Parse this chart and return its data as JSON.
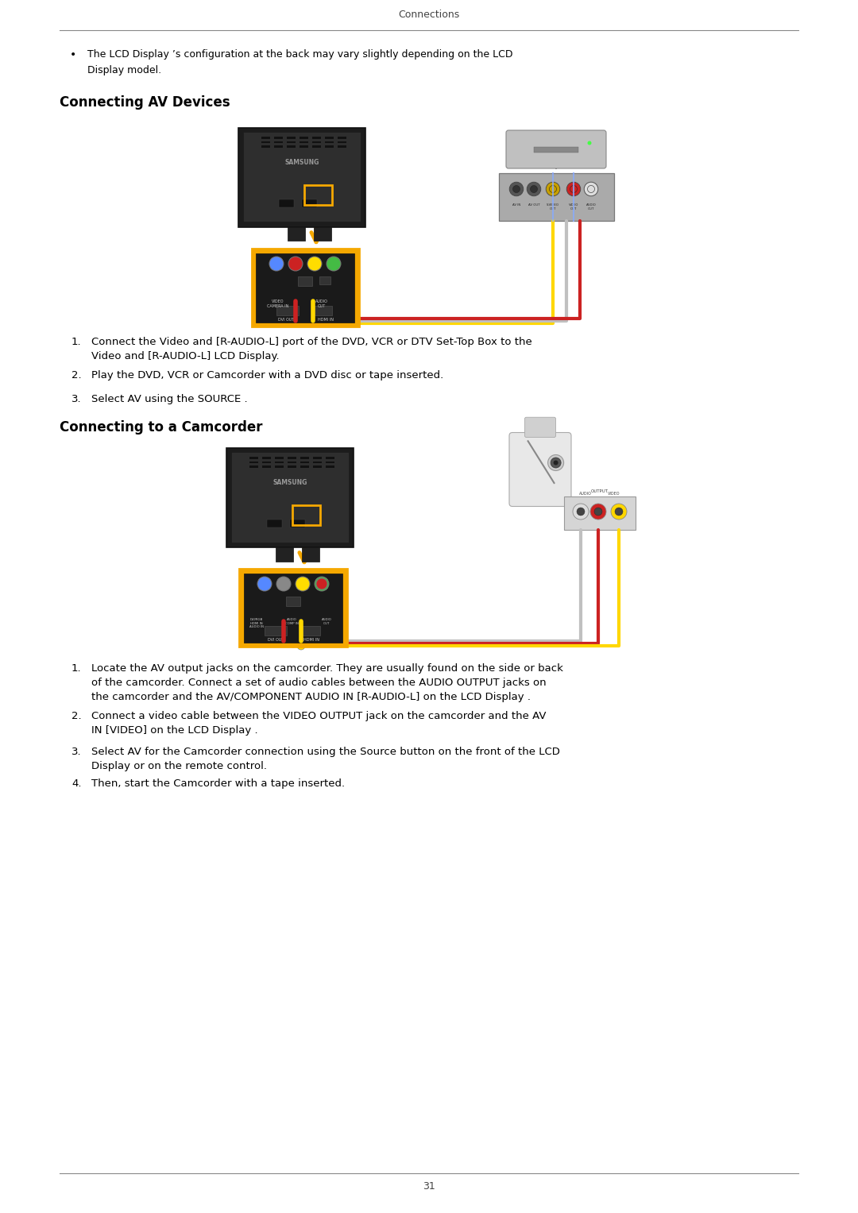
{
  "page_width": 10.8,
  "page_height": 15.27,
  "dpi": 100,
  "bg_color": "#ffffff",
  "header_text": "Connections",
  "footer_text": "31",
  "bullet_text_line1": "The LCD Display ’s configuration at the back may vary slightly depending on the LCD",
  "bullet_text_line2": "Display model.",
  "section1_title": "Connecting AV Devices",
  "section2_title": "Connecting to a Camcorder",
  "items1": [
    "Connect the Video and [R-AUDIO-L] port of the DVD, VCR or DTV Set-Top Box to the\nVideo and [R-AUDIO-L] LCD Display.",
    "Play the DVD, VCR or Camcorder with a DVD disc or tape inserted.",
    "Select AV using the SOURCE ."
  ],
  "items2": [
    "Locate the AV output jacks on the camcorder. They are usually found on the side or back\nof the camcorder. Connect a set of audio cables between the AUDIO OUTPUT jacks on\nthe camcorder and the AV/COMPONENT AUDIO IN [R-AUDIO-L] on the LCD Display .",
    "Connect a video cable between the VIDEO OUTPUT jack on the camcorder and the AV\nIN [VIDEO] on the LCD Display .",
    "Select AV for the Camcorder connection using the Source button on the front of the LCD\nDisplay or on the remote control.",
    "Then, start the Camcorder with a tape inserted."
  ],
  "orange_color": "#F5A800",
  "tv_dark": "#1a1a1a",
  "tv_inner": "#2d2d2d",
  "samsung_text_color": "#aaaaaa"
}
